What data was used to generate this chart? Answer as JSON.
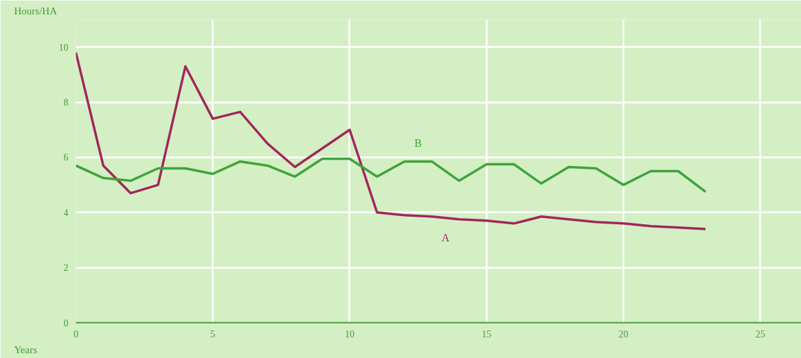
{
  "chart_data": {
    "type": "line",
    "xlabel": "Years",
    "ylabel": "Hours/HA",
    "x": [
      0,
      1,
      2,
      3,
      4,
      5,
      6,
      7,
      8,
      9,
      10,
      11,
      12,
      13,
      14,
      15,
      16,
      17,
      18,
      19,
      20,
      21,
      22,
      23
    ],
    "series": [
      {
        "name": "A",
        "color": "#a0285a",
        "values": [
          9.8,
          5.7,
          4.7,
          5.0,
          9.3,
          7.4,
          7.65,
          6.5,
          5.65,
          null,
          7.0,
          4.0,
          3.9,
          3.85,
          3.75,
          3.7,
          3.6,
          3.85,
          3.75,
          3.65,
          3.6,
          3.5,
          3.45,
          3.4
        ]
      },
      {
        "name": "B",
        "color": "#3fa33a",
        "values": [
          5.7,
          5.25,
          5.15,
          5.6,
          5.6,
          5.4,
          5.85,
          5.7,
          5.3,
          5.95,
          5.95,
          5.3,
          5.85,
          5.85,
          5.15,
          5.75,
          5.75,
          5.05,
          5.65,
          5.6,
          5.0,
          5.5,
          5.5,
          4.75
        ]
      }
    ],
    "xlim": [
      0,
      26.5
    ],
    "ylim": [
      0,
      11
    ],
    "xticks": [
      0,
      5,
      10,
      15,
      20,
      25
    ],
    "yticks": [
      0,
      2,
      4,
      6,
      8,
      10
    ],
    "grid": true,
    "legend": false,
    "marker": "none",
    "line_style": "solid"
  }
}
